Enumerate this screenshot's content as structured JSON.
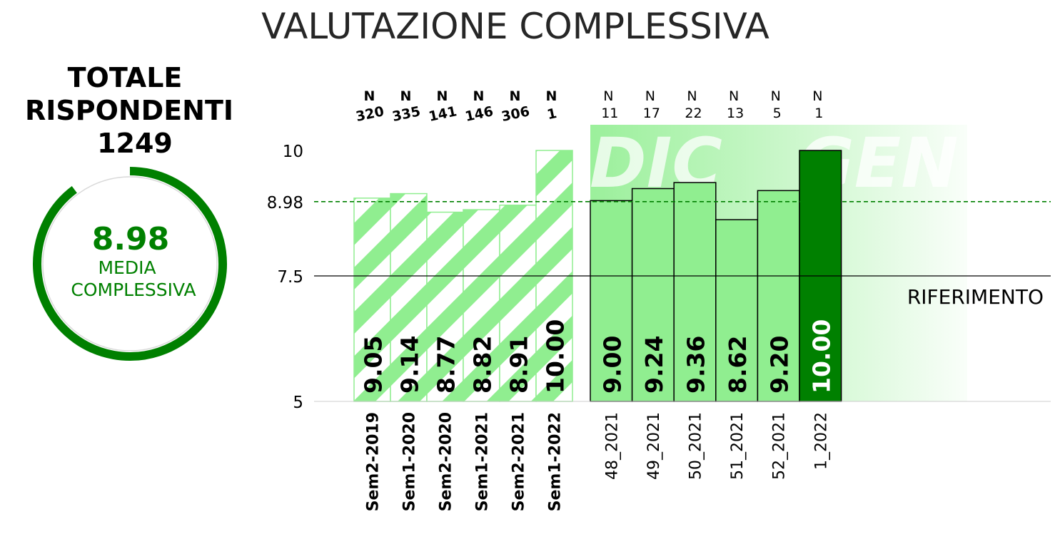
{
  "title": "VALUTAZIONE COMPLESSIVA",
  "summary": {
    "heading_line1": "TOTALE",
    "heading_line2": "RISPONDENTI",
    "total_respondents": "1249",
    "mean_value": "8.98",
    "mean_label_line1": "MEDIA",
    "mean_label_line2": "COMPLESSIVA",
    "ring_fraction": 0.898
  },
  "reference_label": "RIFERIMENTO",
  "watermarks": [
    "DIC",
    "GEN"
  ],
  "colors": {
    "green_dark": "#008000",
    "green_light": "#90EE90",
    "text": "#000000",
    "title": "#262626"
  },
  "chart_data": {
    "type": "bar",
    "title": "VALUTAZIONE COMPLESSIVA",
    "ylim": [
      5,
      10
    ],
    "yticks": [
      "5",
      "7.5",
      "8.98",
      "10"
    ],
    "mean_line": 8.98,
    "reference_line": 7.5,
    "grid": false,
    "groups": [
      {
        "name": "semesters",
        "style": "hatched",
        "categories": [
          "Sem2-2019",
          "Sem1-2020",
          "Sem2-2020",
          "Sem1-2021",
          "Sem2-2021",
          "Sem1-2022"
        ],
        "values": [
          9.05,
          9.14,
          8.77,
          8.82,
          8.91,
          10.0
        ],
        "value_labels": [
          "9.05",
          "9.14",
          "8.77",
          "8.82",
          "8.91",
          "10.00"
        ],
        "n": [
          "320",
          "335",
          "141",
          "146",
          "306",
          "1"
        ]
      },
      {
        "name": "weeks",
        "style": "solid",
        "categories": [
          "48_2021",
          "49_2021",
          "50_2021",
          "51_2021",
          "52_2021",
          "1_2022"
        ],
        "values": [
          9.0,
          9.24,
          9.36,
          8.62,
          9.2,
          10.0
        ],
        "value_labels": [
          "9.00",
          "9.24",
          "9.36",
          "8.62",
          "9.20",
          "10.00"
        ],
        "n": [
          "11",
          "17",
          "22",
          "13",
          "5",
          "1"
        ],
        "highlight_last": true
      }
    ],
    "n_label": "N"
  }
}
